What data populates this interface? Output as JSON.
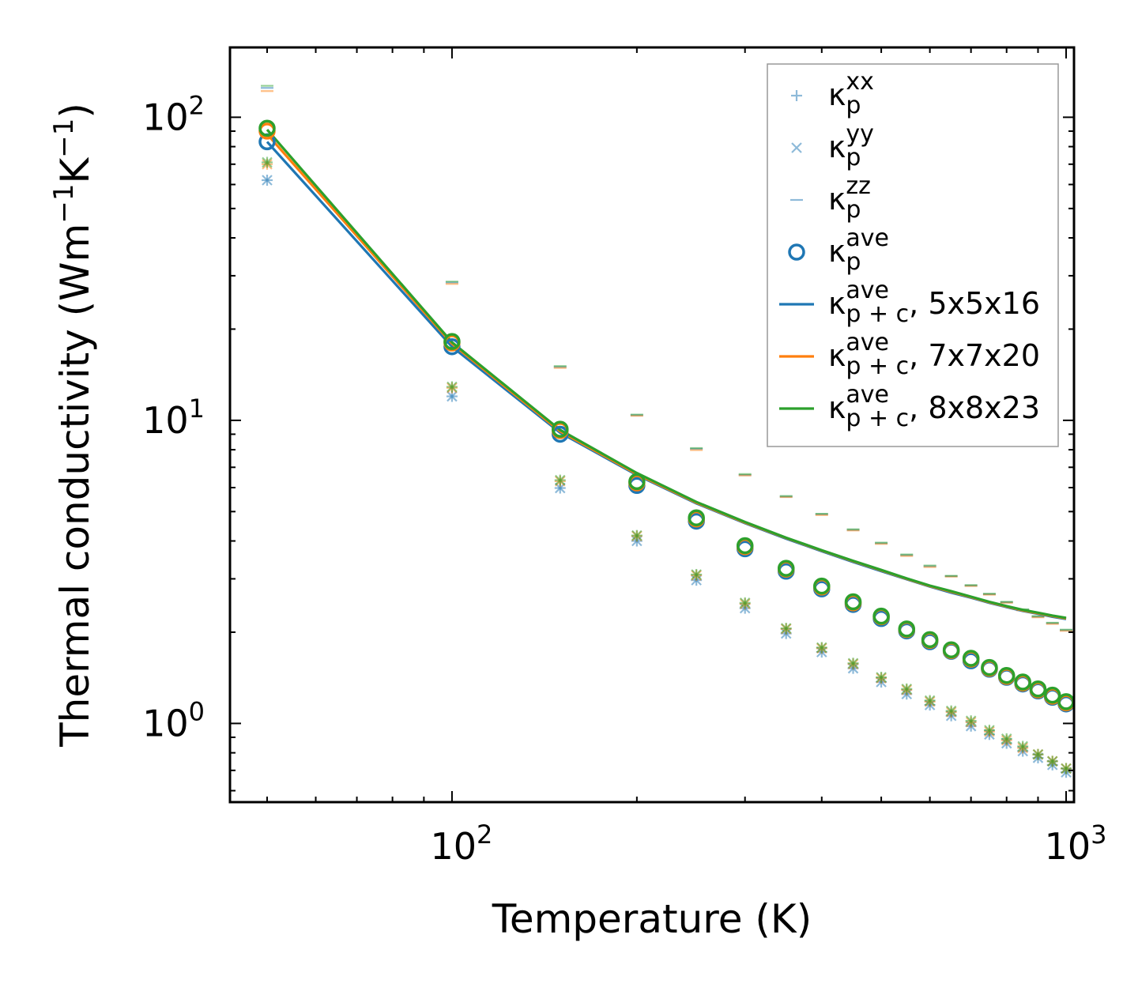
{
  "chart_data": {
    "type": "scatter",
    "xscale": "log",
    "yscale": "log",
    "xlabel": "Temperature (K)",
    "ylabel_main": "Thermal conductivity (Wm",
    "ylabel_exp1": "−1",
    "ylabel_mid": "K",
    "ylabel_exp2": "−1",
    "ylabel_end": ")",
    "xlim": [
      43.5,
      1030
    ],
    "ylim": [
      0.55,
      170
    ],
    "x_ticks": [
      {
        "value": 100,
        "base": "10",
        "exp": "2"
      },
      {
        "value": 1000,
        "base": "10",
        "exp": "3"
      }
    ],
    "y_ticks": [
      {
        "value": 1,
        "base": "10",
        "exp": "0"
      },
      {
        "value": 10,
        "base": "10",
        "exp": "1"
      },
      {
        "value": 100,
        "base": "10",
        "exp": "2"
      }
    ],
    "colors": {
      "blue": "#1f77b4",
      "orange": "#ff7f0e",
      "green": "#2ca02c"
    },
    "series": [
      {
        "name": "κp xx",
        "marker": "plus",
        "color": "#1f77b4",
        "opacity": 0.5,
        "x": [
          50,
          100,
          150,
          200,
          250,
          300,
          350,
          400,
          450,
          500,
          550,
          600,
          650,
          700,
          750,
          800,
          850,
          900,
          950,
          1000
        ],
        "y": [
          62,
          12.0,
          5.98,
          4.0,
          2.97,
          2.4,
          1.98,
          1.72,
          1.52,
          1.37,
          1.25,
          1.15,
          1.06,
          0.98,
          0.92,
          0.86,
          0.81,
          0.77,
          0.73,
          0.69
        ]
      },
      {
        "name": "κp yy",
        "marker": "x",
        "color": "#1f77b4",
        "opacity": 0.5,
        "x": [
          50,
          100,
          150,
          200,
          250,
          300,
          350,
          400,
          450,
          500,
          550,
          600,
          650,
          700,
          750,
          800,
          850,
          900,
          950,
          1000
        ],
        "y": [
          62,
          12.0,
          5.98,
          4.0,
          2.97,
          2.4,
          1.98,
          1.72,
          1.52,
          1.37,
          1.25,
          1.15,
          1.06,
          0.98,
          0.92,
          0.86,
          0.81,
          0.77,
          0.73,
          0.69
        ]
      },
      {
        "name": "κp zz",
        "marker": "hline",
        "color": "#1f77b4",
        "opacity": 0.5,
        "x": [
          50,
          100,
          150,
          200,
          250,
          300,
          350,
          400,
          450,
          500,
          550,
          600,
          650,
          700,
          750,
          800,
          850,
          900,
          950,
          1000
        ],
        "y": [
          125,
          28.5,
          15.0,
          10.4,
          8.05,
          6.6,
          5.6,
          4.9,
          4.35,
          3.93,
          3.59,
          3.3,
          3.06,
          2.85,
          2.67,
          2.51,
          2.37,
          2.25,
          2.14,
          2.03
        ]
      },
      {
        "name": "κp ave",
        "marker": "circle",
        "color": "#1f77b4",
        "opacity": 1,
        "x": [
          50,
          100,
          150,
          200,
          250,
          300,
          350,
          400,
          450,
          500,
          550,
          600,
          650,
          700,
          750,
          800,
          850,
          900,
          950,
          1000
        ],
        "y": [
          83,
          17.5,
          9.0,
          6.1,
          4.65,
          3.77,
          3.18,
          2.78,
          2.47,
          2.22,
          2.02,
          1.86,
          1.73,
          1.61,
          1.51,
          1.42,
          1.35,
          1.28,
          1.22,
          1.16
        ]
      },
      {
        "name": "κp xx (7x7x20)",
        "marker": "plus",
        "color": "#ff7f0e",
        "opacity": 0.5,
        "x": [
          50,
          100,
          150,
          200,
          250,
          300,
          350,
          400,
          450,
          500,
          550,
          600,
          650,
          700,
          750,
          800,
          850,
          900,
          950,
          1000
        ],
        "y": [
          70,
          12.8,
          6.3,
          4.15,
          3.08,
          2.48,
          2.05,
          1.77,
          1.57,
          1.41,
          1.29,
          1.18,
          1.09,
          1.01,
          0.94,
          0.88,
          0.83,
          0.79,
          0.75,
          0.71
        ]
      },
      {
        "name": "κp zz (7x7x20)",
        "marker": "hline",
        "color": "#ff7f0e",
        "opacity": 0.5,
        "x": [
          50,
          100,
          150,
          200,
          250,
          300,
          350,
          400,
          450,
          500,
          550,
          600,
          650,
          700,
          750,
          800,
          850,
          900,
          950,
          1000
        ],
        "y": [
          122,
          28.2,
          14.9,
          10.35,
          7.98,
          6.58,
          5.58,
          4.87,
          4.33,
          3.91,
          3.57,
          3.28,
          3.05,
          2.84,
          2.66,
          2.5,
          2.36,
          2.24,
          2.13,
          2.02
        ]
      },
      {
        "name": "κp ave (7x7x20)",
        "marker": "circle",
        "color": "#ff7f0e",
        "opacity": 1,
        "x": [
          50,
          100,
          150,
          200,
          250,
          300,
          350,
          400,
          450,
          500,
          550,
          600,
          650,
          700,
          750,
          800,
          850,
          900,
          950,
          1000
        ],
        "y": [
          90,
          18.0,
          9.25,
          6.22,
          4.73,
          3.83,
          3.23,
          2.82,
          2.5,
          2.25,
          2.04,
          1.88,
          1.74,
          1.63,
          1.52,
          1.43,
          1.36,
          1.29,
          1.23,
          1.17
        ]
      },
      {
        "name": "κp xx (8x8x23)",
        "marker": "plus",
        "color": "#2ca02c",
        "opacity": 0.5,
        "x": [
          50,
          100,
          150,
          200,
          250,
          300,
          350,
          400,
          450,
          500,
          550,
          600,
          650,
          700,
          750,
          800,
          850,
          900,
          950,
          1000
        ],
        "y": [
          71,
          12.9,
          6.35,
          4.17,
          3.1,
          2.5,
          2.06,
          1.78,
          1.58,
          1.42,
          1.3,
          1.19,
          1.1,
          1.02,
          0.95,
          0.89,
          0.84,
          0.79,
          0.75,
          0.71
        ]
      },
      {
        "name": "κp zz (8x8x23)",
        "marker": "hline",
        "color": "#2ca02c",
        "opacity": 0.5,
        "x": [
          50,
          100,
          150,
          200,
          250,
          300,
          350,
          400,
          450,
          500,
          550,
          600,
          650,
          700,
          750,
          800,
          850,
          900,
          950,
          1000
        ],
        "y": [
          127,
          28.7,
          15.1,
          10.45,
          8.1,
          6.65,
          5.63,
          4.92,
          4.37,
          3.95,
          3.61,
          3.32,
          3.07,
          2.86,
          2.68,
          2.52,
          2.38,
          2.26,
          2.15,
          2.04
        ]
      },
      {
        "name": "κp ave (8x8x23)",
        "marker": "circle",
        "color": "#2ca02c",
        "opacity": 1,
        "x": [
          50,
          100,
          150,
          200,
          250,
          300,
          350,
          400,
          450,
          500,
          550,
          600,
          650,
          700,
          750,
          800,
          850,
          900,
          950,
          1000
        ],
        "y": [
          92,
          18.2,
          9.35,
          6.28,
          4.77,
          3.86,
          3.25,
          2.84,
          2.52,
          2.26,
          2.05,
          1.89,
          1.75,
          1.64,
          1.53,
          1.44,
          1.37,
          1.3,
          1.24,
          1.18
        ]
      },
      {
        "name": "κp+c ave, 5x5x16",
        "marker": "line",
        "color": "#1f77b4",
        "opacity": 1,
        "x": [
          50,
          100,
          150,
          200,
          250,
          300,
          350,
          400,
          450,
          500,
          550,
          600,
          650,
          700,
          750,
          800,
          850,
          900,
          950,
          1000
        ],
        "y": [
          83,
          17.5,
          9.1,
          6.6,
          5.32,
          4.58,
          4.07,
          3.7,
          3.41,
          3.18,
          2.99,
          2.83,
          2.7,
          2.6,
          2.5,
          2.42,
          2.35,
          2.3,
          2.25,
          2.21
        ]
      },
      {
        "name": "κp+c ave, 7x7x20",
        "marker": "line",
        "color": "#ff7f0e",
        "opacity": 1,
        "x": [
          50,
          100,
          150,
          200,
          250,
          300,
          350,
          400,
          450,
          500,
          550,
          600,
          650,
          700,
          750,
          800,
          850,
          900,
          950,
          1000
        ],
        "y": [
          88,
          17.9,
          9.2,
          6.65,
          5.35,
          4.6,
          4.09,
          3.72,
          3.43,
          3.2,
          3.0,
          2.84,
          2.72,
          2.61,
          2.51,
          2.43,
          2.36,
          2.31,
          2.26,
          2.22
        ]
      },
      {
        "name": "κp+c ave, 8x8x23",
        "marker": "line",
        "color": "#2ca02c",
        "opacity": 1,
        "x": [
          50,
          100,
          150,
          200,
          250,
          300,
          350,
          400,
          450,
          500,
          550,
          600,
          650,
          700,
          750,
          800,
          850,
          900,
          950,
          1000
        ],
        "y": [
          91,
          18.1,
          9.3,
          6.7,
          5.38,
          4.62,
          4.1,
          3.73,
          3.44,
          3.21,
          3.01,
          2.85,
          2.73,
          2.62,
          2.52,
          2.44,
          2.37,
          2.32,
          2.27,
          2.23
        ]
      }
    ],
    "legend": {
      "position": "top-right",
      "entries": [
        {
          "marker": "plus",
          "color": "#1f77b4",
          "opacity": 0.5,
          "sym": "κ",
          "sub": "p",
          "sup": "xx",
          "suffix": ""
        },
        {
          "marker": "x",
          "color": "#1f77b4",
          "opacity": 0.5,
          "sym": "κ",
          "sub": "p",
          "sup": "yy",
          "suffix": ""
        },
        {
          "marker": "hline",
          "color": "#1f77b4",
          "opacity": 0.5,
          "sym": "κ",
          "sub": "p",
          "sup": "zz",
          "suffix": ""
        },
        {
          "marker": "circle",
          "color": "#1f77b4",
          "opacity": 1,
          "sym": "κ",
          "sub": "p",
          "sup": "ave",
          "suffix": ""
        },
        {
          "marker": "line",
          "color": "#1f77b4",
          "opacity": 1,
          "sym": "κ",
          "sub": "p + c",
          "sup": "ave",
          "suffix": ", 5x5x16"
        },
        {
          "marker": "line",
          "color": "#ff7f0e",
          "opacity": 1,
          "sym": "κ",
          "sub": "p + c",
          "sup": "ave",
          "suffix": ", 7x7x20"
        },
        {
          "marker": "line",
          "color": "#2ca02c",
          "opacity": 1,
          "sym": "κ",
          "sub": "p + c",
          "sup": "ave",
          "suffix": ", 8x8x23"
        }
      ]
    }
  }
}
